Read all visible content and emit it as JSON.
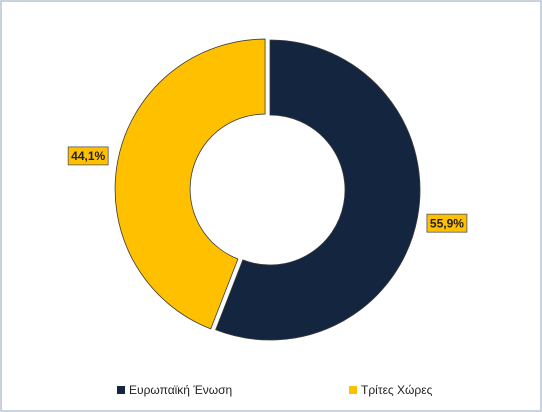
{
  "chart_data": {
    "type": "donut",
    "categories": [
      "Ευρωπαϊκή Ένωση",
      "Τρίτες Χώρες"
    ],
    "values": [
      55.9,
      44.1
    ],
    "value_labels": [
      "55,9%",
      "44,1%"
    ],
    "colors": [
      "#14253f",
      "#ffc000"
    ]
  }
}
